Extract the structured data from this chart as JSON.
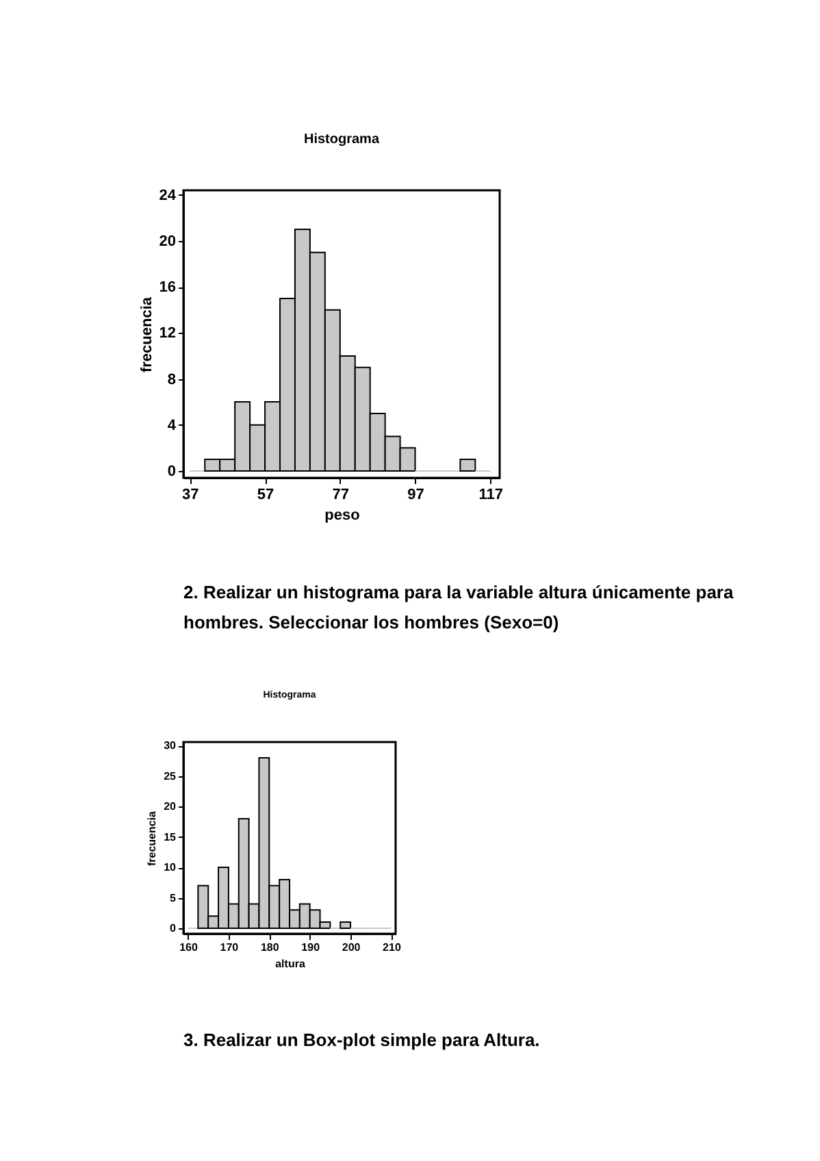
{
  "chart_data": [
    {
      "type": "histogram",
      "title": "Histograma",
      "xlabel": "peso",
      "ylabel": "frecuencia",
      "bins": [
        37,
        41,
        45,
        49,
        53,
        57,
        61,
        65,
        69,
        73,
        77,
        81,
        85,
        89,
        93,
        97,
        101,
        105,
        109,
        113,
        117
      ],
      "values": [
        0,
        1,
        1,
        6,
        4,
        6,
        15,
        21,
        19,
        14,
        10,
        9,
        5,
        3,
        2,
        0,
        0,
        0,
        1,
        0
      ],
      "color": "#c8c8c8",
      "xlim": [
        35.3,
        119.5
      ],
      "ylim": [
        -0.6,
        24.4
      ],
      "xticks": [
        37,
        57,
        77,
        97,
        117
      ],
      "yticks": [
        0,
        4,
        8,
        12,
        16,
        20,
        24
      ],
      "grid": false,
      "annotations": [
        "2. Realizar un histograma para la variable altura únicamente para hombres. Seleccionar los hombres (Sexo=0)"
      ]
    },
    {
      "type": "histogram",
      "title": "Histograma",
      "xlabel": "altura",
      "ylabel": "frecuencia",
      "bins": [
        160,
        162.5,
        165,
        167.5,
        170,
        172.5,
        175,
        177.5,
        180,
        182.5,
        185,
        187.5,
        190,
        192.5,
        195,
        197.5,
        200,
        202.5,
        205,
        207.5,
        210
      ],
      "values": [
        0,
        7,
        2,
        10,
        4,
        18,
        4,
        28,
        7,
        8,
        3,
        4,
        3,
        1,
        0,
        1,
        0,
        0,
        0,
        0
      ],
      "color": "#c8c8c8",
      "xlim": [
        158.9,
        211.1
      ],
      "ylim": [
        -0.9,
        30.6
      ],
      "xticks": [
        160,
        170,
        180,
        190,
        200,
        210
      ],
      "yticks": [
        0,
        5,
        10,
        15,
        20,
        25,
        30
      ],
      "grid": false,
      "annotations": [
        "3. Realizar un Box-plot simple para Altura."
      ]
    }
  ]
}
